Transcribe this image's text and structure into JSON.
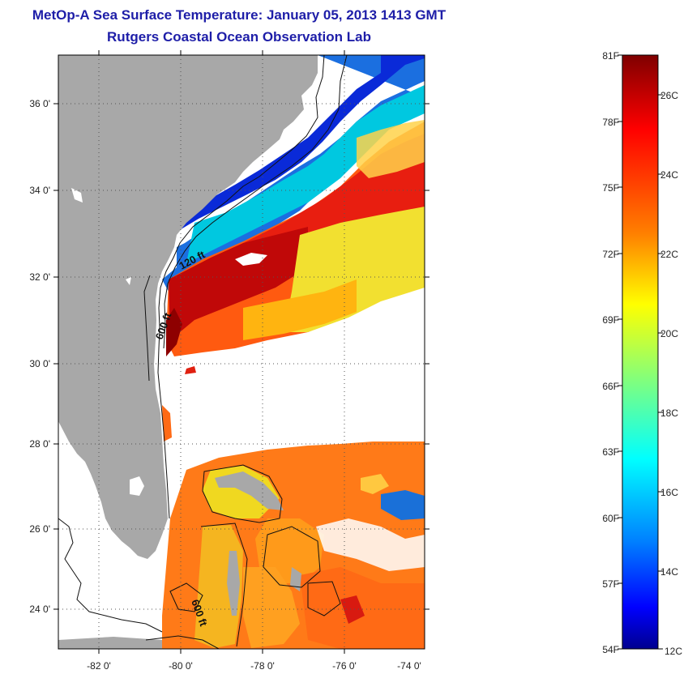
{
  "header": {
    "title": "MetOp-A Sea Surface Temperature:  January 05, 2013 1413 GMT",
    "subtitle": "Rutgers Coastal Ocean Observation Lab"
  },
  "map": {
    "latitude_labels": [
      "36 0'",
      "34 0'",
      "32 0'",
      "30 0'",
      "28 0'",
      "26 0'",
      "24 0'"
    ],
    "longitude_labels": [
      "-82 0'",
      "-80 0'",
      "-78 0'",
      "-76 0'",
      "-74 0'"
    ],
    "contour_labels": [
      "120 ft",
      "600 ft",
      "600 ft"
    ],
    "colors": {
      "land": "#a8a8a8",
      "no_data": "#ffffff"
    }
  },
  "colorbar": {
    "fahrenheit_labels": [
      "81F",
      "78F",
      "75F",
      "72F",
      "69F",
      "66F",
      "63F",
      "60F",
      "57F",
      "54F"
    ],
    "celsius_labels": [
      "26C",
      "24C",
      "22C",
      "20C",
      "18C",
      "16C",
      "14C",
      "12C"
    ],
    "colors": [
      "#7f0000",
      "#ff0000",
      "#ff7f00",
      "#ffff00",
      "#7fff7f",
      "#00ffff",
      "#007fff",
      "#0000ff",
      "#00008f"
    ]
  }
}
